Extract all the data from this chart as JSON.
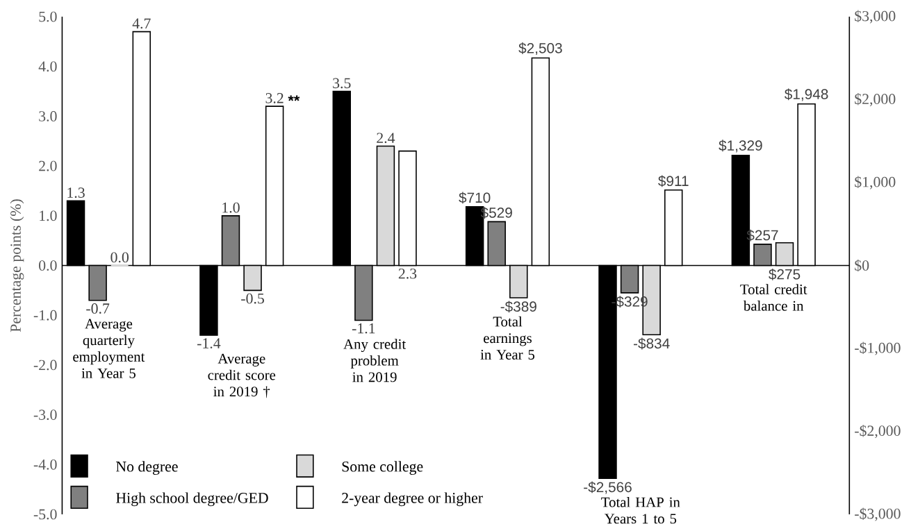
{
  "chart_data": {
    "type": "bar",
    "ylabel": "Percentage points (%)",
    "categories": [
      "Average quarterly employment in Year 5",
      "Average credit score in 2019 †",
      "Any credit problem in 2019",
      "Total earnings in Year 5",
      "Total HAP in Years 1 to 5",
      "Total credit balance in"
    ],
    "series": [
      {
        "name": "No degree",
        "color": "#000000",
        "values": [
          1.3,
          -1.4,
          3.5,
          null,
          null,
          null
        ],
        "value_labels": [
          "1.3",
          "-1.4",
          "3.5",
          null,
          null,
          null
        ]
      },
      {
        "name": "High school degree/GED",
        "color": "#808080",
        "values": [
          -0.7,
          1.0,
          -1.1,
          null,
          null,
          null
        ],
        "value_labels": [
          "-0.7",
          "1.0",
          "-1.1",
          null,
          null,
          null
        ]
      },
      {
        "name": "Some college",
        "color": "#d9d9d9",
        "values": [
          0.0,
          -0.5,
          2.4,
          null,
          null,
          null
        ],
        "value_labels": [
          "0.0",
          "-0.5",
          "2.4",
          null,
          null,
          null
        ]
      },
      {
        "name": "2-year degree or higher",
        "color": "#ffffff",
        "values": [
          4.7,
          3.2,
          2.3,
          null,
          null,
          null
        ],
        "value_labels": [
          "4.7",
          "3.2",
          "2.3",
          null,
          null,
          null
        ]
      },
      {
        "color": "#000000",
        "axis": "y2",
        "values": [
          null,
          null,
          null,
          710,
          -2566,
          1329
        ],
        "value_labels": [
          null,
          null,
          null,
          "$710",
          "-$2,566",
          "$1,329"
        ]
      },
      {
        "color": "#808080",
        "axis": "y2",
        "values": [
          null,
          null,
          null,
          529,
          -329,
          257
        ],
        "value_labels": [
          null,
          null,
          null,
          "$529",
          "-$329",
          "$257"
        ]
      },
      {
        "color": "#d9d9d9",
        "axis": "y2",
        "values": [
          null,
          null,
          null,
          -389,
          -834,
          275
        ],
        "value_labels": [
          null,
          null,
          null,
          "-$389",
          "-$834",
          "$275"
        ]
      },
      {
        "color": "#ffffff",
        "axis": "y2",
        "values": [
          null,
          null,
          null,
          2503,
          911,
          1948
        ],
        "value_labels": [
          null,
          null,
          null,
          "$2,503",
          "$911",
          "$1,948"
        ]
      }
    ],
    "ylim": [
      -5,
      5
    ],
    "yticks": [
      {
        "value": -5,
        "label": "-5.0"
      },
      {
        "value": -4,
        "label": "-4.0"
      },
      {
        "value": -3,
        "label": "-3.0"
      },
      {
        "value": -2,
        "label": "-2.0"
      },
      {
        "value": -1,
        "label": "-1.0"
      },
      {
        "value": 0,
        "label": "0.0"
      },
      {
        "value": 1,
        "label": "1.0"
      },
      {
        "value": 2,
        "label": "2.0"
      },
      {
        "value": 3,
        "label": "3.0"
      },
      {
        "value": 4,
        "label": "4.0"
      },
      {
        "value": 5,
        "label": "5.0"
      }
    ],
    "y2lim": [
      -3000,
      3000
    ],
    "y2ticks": [
      {
        "value": -3000,
        "label": "-$3,000"
      },
      {
        "value": -2000,
        "label": "-$2,000"
      },
      {
        "value": -1000,
        "label": "-$1,000"
      },
      {
        "value": 0,
        "label": "$0"
      },
      {
        "value": 1000,
        "label": "$1,000"
      },
      {
        "value": 2000,
        "label": "$2,000"
      },
      {
        "value": 3000,
        "label": "$3,000"
      }
    ],
    "legend": "bottom left",
    "annotations": [
      "**"
    ]
  }
}
